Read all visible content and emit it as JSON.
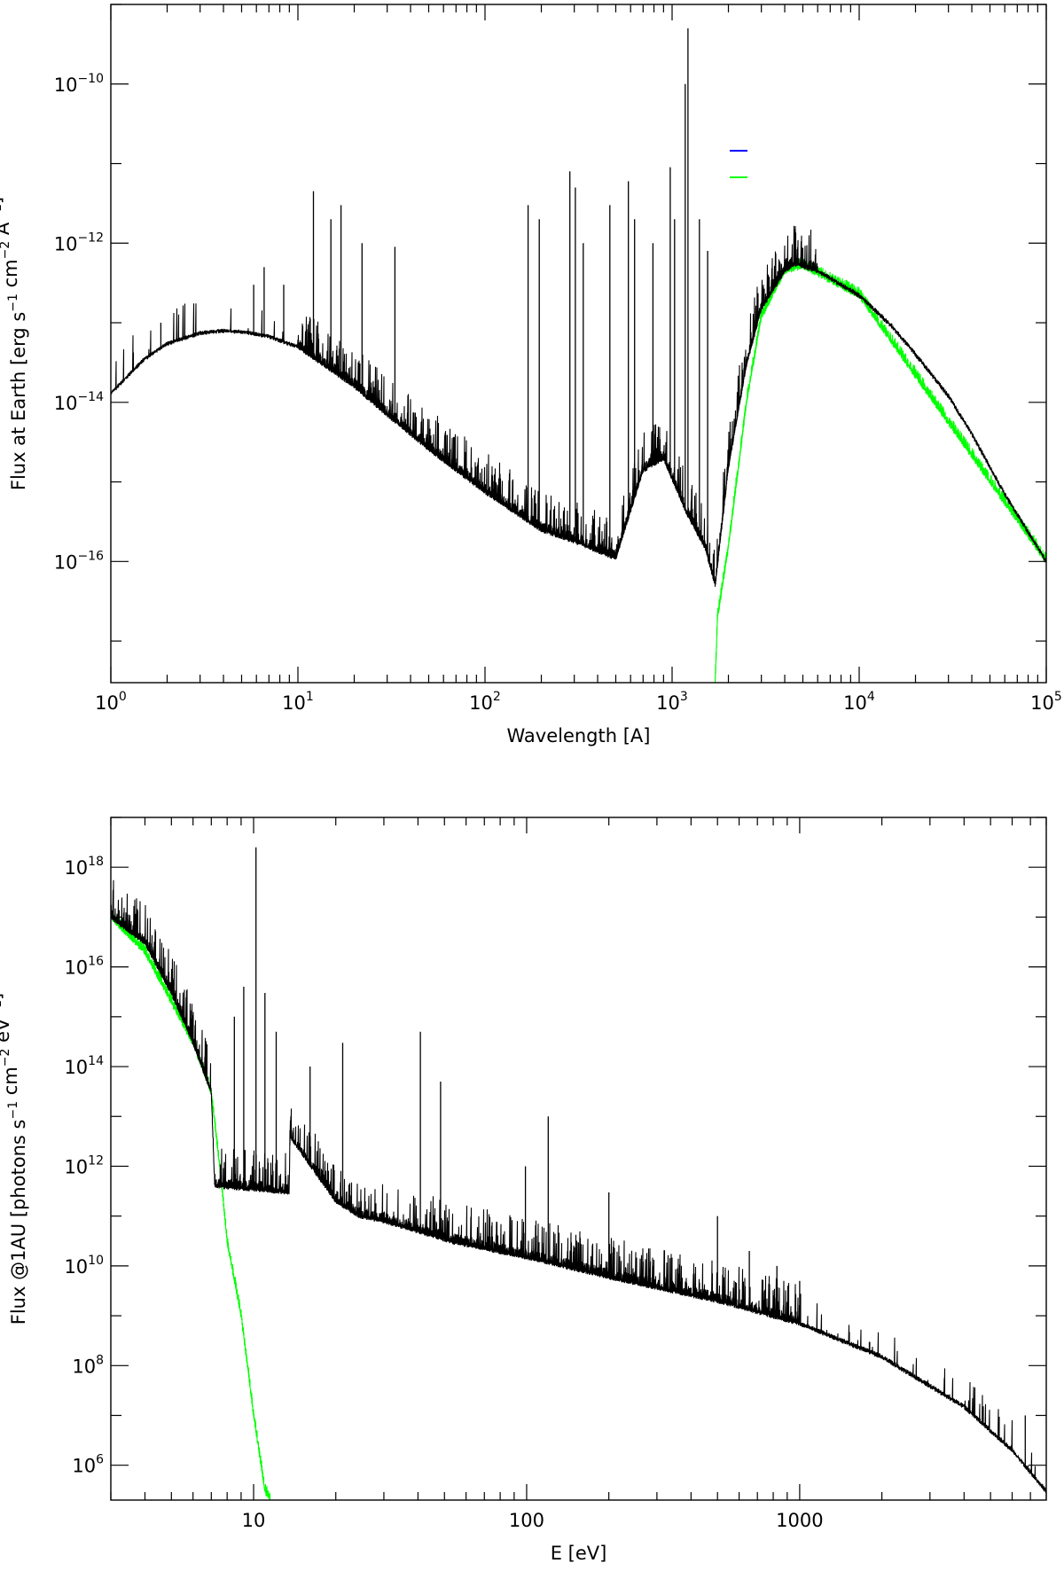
{
  "chart_data": [
    {
      "type": "line",
      "xscale": "log",
      "yscale": "log",
      "xlabel": "Wavelength [A]",
      "ylabel": "Flux at Earth [erg s^-1 cm^-2 A^-1]",
      "xlim": [
        1,
        100000
      ],
      "ylim": [
        3e-18,
        1e-09
      ],
      "grid": false,
      "legend": {
        "position": "top-right",
        "entries": [
          "",
          ""
        ]
      },
      "x_ticks": [
        {
          "base": "10",
          "exp": "0"
        },
        {
          "base": "10",
          "exp": "1"
        },
        {
          "base": "10",
          "exp": "2"
        },
        {
          "base": "10",
          "exp": "3"
        },
        {
          "base": "10",
          "exp": "4"
        },
        {
          "base": "10",
          "exp": "5"
        }
      ],
      "y_ticks": [
        {
          "base": "10",
          "exp": "−16"
        },
        {
          "base": "10",
          "exp": "−14"
        },
        {
          "base": "10",
          "exp": "−12"
        },
        {
          "base": "10",
          "exp": "−10"
        }
      ],
      "series": [
        {
          "color": "#000000",
          "continuum_x": [
            1,
            1.5,
            2,
            3,
            4,
            5,
            7,
            10,
            20,
            30,
            50,
            100,
            200,
            300,
            500,
            700,
            900,
            1200,
            1500,
            1700,
            2000,
            2500,
            3000,
            4000,
            4500,
            6000,
            10000,
            15000,
            20000,
            30000,
            40000,
            60000,
            100000
          ],
          "continuum_y": [
            1.3e-14,
            3.5e-14,
            5.5e-14,
            7.5e-14,
            8e-14,
            7.8e-14,
            6.8e-14,
            5e-14,
            1.6e-14,
            7e-15,
            2.6e-15,
            7.5e-16,
            2.5e-16,
            1.8e-16,
            1.1e-16,
            1.4e-15,
            2e-15,
            4e-16,
            1.5e-16,
            5e-17,
            1.5e-15,
            3e-14,
            1.5e-13,
            4.5e-13,
            5.5e-13,
            4.5e-13,
            2.2e-13,
            9e-14,
            4e-14,
            1.2e-14,
            4e-15,
            7e-16,
            1e-16
          ],
          "lines": [
            [
              1.85,
              1e-13
            ],
            [
              5.8,
              3e-13
            ],
            [
              6.6,
              5e-13
            ],
            [
              8.4,
              3e-13
            ],
            [
              12.1,
              4.5e-12
            ],
            [
              15,
              2e-12
            ],
            [
              17,
              3e-12
            ],
            [
              22,
              1e-12
            ],
            [
              33,
              9e-13
            ],
            [
              170,
              3e-12
            ],
            [
              195,
              2e-12
            ],
            [
              284,
              8e-12
            ],
            [
              304,
              5e-12
            ],
            [
              335,
              1e-12
            ],
            [
              465,
              3e-12
            ],
            [
              584,
              6e-12
            ],
            [
              630,
              2e-12
            ],
            [
              790,
              1e-12
            ],
            [
              977,
              9e-12
            ],
            [
              1031,
              2e-12
            ],
            [
              1175,
              1e-10
            ],
            [
              1216,
              5e-10
            ],
            [
              1400,
              2e-12
            ],
            [
              1549,
              8e-13
            ]
          ]
        },
        {
          "color": "#00ff00",
          "continuum_x": [
            1700,
            1750,
            1800,
            2000,
            2500,
            3000,
            4000,
            5000,
            10000,
            100000
          ],
          "continuum_y": [
            3e-18,
            2e-17,
            3e-17,
            1.5e-16,
            1e-14,
            1.2e-13,
            4.5e-13,
            5.2e-13,
            2.2e-13,
            1e-16
          ]
        }
      ]
    },
    {
      "type": "line",
      "xscale": "log",
      "yscale": "log",
      "xlabel": "E [eV]",
      "ylabel": "Flux @1AU [photons s^-1 cm^-2 eV^-1]",
      "xlim": [
        3,
        8000
      ],
      "ylim": [
        200000.0,
        1e+19
      ],
      "grid": false,
      "x_ticks": [
        {
          "base": "10",
          "exp": ""
        },
        {
          "base": "100",
          "exp": ""
        },
        {
          "base": "1000",
          "exp": ""
        }
      ],
      "y_ticks": [
        {
          "base": "10",
          "exp": "6"
        },
        {
          "base": "10",
          "exp": "8"
        },
        {
          "base": "10",
          "exp": "10"
        },
        {
          "base": "10",
          "exp": "12"
        },
        {
          "base": "10",
          "exp": "14"
        },
        {
          "base": "10",
          "exp": "16"
        },
        {
          "base": "10",
          "exp": "18"
        }
      ],
      "series": [
        {
          "color": "#000000",
          "continuum_x": [
            3,
            4,
            5,
            6,
            7,
            7.2,
            10,
            13.5,
            13.6,
            20,
            24.5,
            30,
            40,
            54.4,
            100,
            200,
            500,
            1000,
            2000,
            4000,
            6000,
            8000
          ],
          "continuum_y": [
            1e+17,
            3e+16,
            3000000000000000.0,
            300000000000000.0,
            30000000000000.0,
            400000000000.0,
            350000000000.0,
            300000000000.0,
            4000000000000.0,
            200000000000.0,
            100000000000.0,
            80000000000.0,
            50000000000.0,
            30000000000.0,
            15000000000.0,
            6000000000.0,
            2000000000.0,
            700000000.0,
            150000000.0,
            15000000.0,
            2000000.0,
            300000.0
          ],
          "lines": [
            [
              8.5,
              1000000000000000.0
            ],
            [
              9.2,
              4000000000000000.0
            ],
            [
              10.2,
              2.5e+18
            ],
            [
              11,
              3000000000000000.0
            ],
            [
              12.1,
              500000000000000.0
            ],
            [
              16.1,
              100000000000000.0
            ],
            [
              21.2,
              300000000000000.0
            ],
            [
              40.8,
              500000000000000.0
            ],
            [
              48.4,
              50000000000000.0
            ],
            [
              99,
              1000000000000.0
            ],
            [
              120,
              10000000000000.0
            ],
            [
              200,
              300000000000.0
            ],
            [
              500,
              100000000000.0
            ],
            [
              654,
              20000000000.0
            ],
            [
              825,
              10000000000.0
            ],
            [
              1000,
              5000000000.0
            ],
            [
              1800,
              300000000.0
            ],
            [
              6700,
              10000000.0
            ]
          ]
        },
        {
          "color": "#00ff00",
          "continuum_x": [
            3,
            4,
            5,
            6,
            7,
            7.5,
            8,
            9,
            10,
            11,
            11.5
          ],
          "continuum_y": [
            1e+17,
            2e+16,
            2000000000000000.0,
            300000000000000.0,
            30000000000000.0,
            1000000000000.0,
            30000000000.0,
            1000000000.0,
            10000000.0,
            300000.0,
            200000.0
          ]
        }
      ]
    }
  ]
}
